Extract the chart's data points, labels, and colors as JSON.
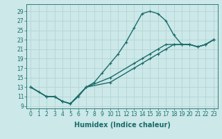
{
  "xlabel": "Humidex (Indice chaleur)",
  "ylabel": "",
  "xlim": [
    -0.5,
    23.5
  ],
  "ylim": [
    8.5,
    30.5
  ],
  "xticks": [
    0,
    1,
    2,
    3,
    4,
    5,
    6,
    7,
    8,
    9,
    10,
    11,
    12,
    13,
    14,
    15,
    16,
    17,
    18,
    19,
    20,
    21,
    22,
    23
  ],
  "yticks": [
    9,
    11,
    13,
    15,
    17,
    19,
    21,
    23,
    25,
    27,
    29
  ],
  "bg_color": "#cce8e8",
  "grid_color": "#b0d0d0",
  "line_color": "#1a6b6b",
  "lines": [
    {
      "x": [
        0,
        1,
        2,
        3,
        4,
        5,
        6,
        7,
        8,
        9,
        10,
        11,
        12,
        13,
        14,
        15,
        16,
        17,
        18,
        19,
        20,
        21,
        22,
        23
      ],
      "y": [
        13,
        12,
        11,
        11,
        10,
        9.5,
        11,
        13,
        14,
        16,
        18,
        20,
        22.5,
        25.5,
        28.5,
        29,
        28.5,
        27,
        24,
        22,
        22,
        21.5,
        22,
        23
      ]
    },
    {
      "x": [
        0,
        2,
        3,
        4,
        5,
        7,
        10,
        13,
        14,
        15,
        16,
        17,
        18,
        19,
        20,
        21,
        22,
        23
      ],
      "y": [
        13,
        11,
        11,
        10,
        9.5,
        13,
        15,
        18,
        19,
        20,
        21,
        22,
        22,
        22,
        22,
        21.5,
        22,
        23
      ]
    },
    {
      "x": [
        0,
        2,
        3,
        4,
        5,
        7,
        10,
        13,
        14,
        15,
        16,
        17,
        18,
        19,
        20,
        21,
        22,
        23
      ],
      "y": [
        13,
        11,
        11,
        10,
        9.5,
        13,
        14,
        17,
        18,
        19,
        20,
        21,
        22,
        22,
        22,
        21.5,
        22,
        23
      ]
    }
  ],
  "marker": "+",
  "markersize": 3.5,
  "linewidth": 1.0,
  "label_fontsize": 7,
  "tick_fontsize": 5.5
}
